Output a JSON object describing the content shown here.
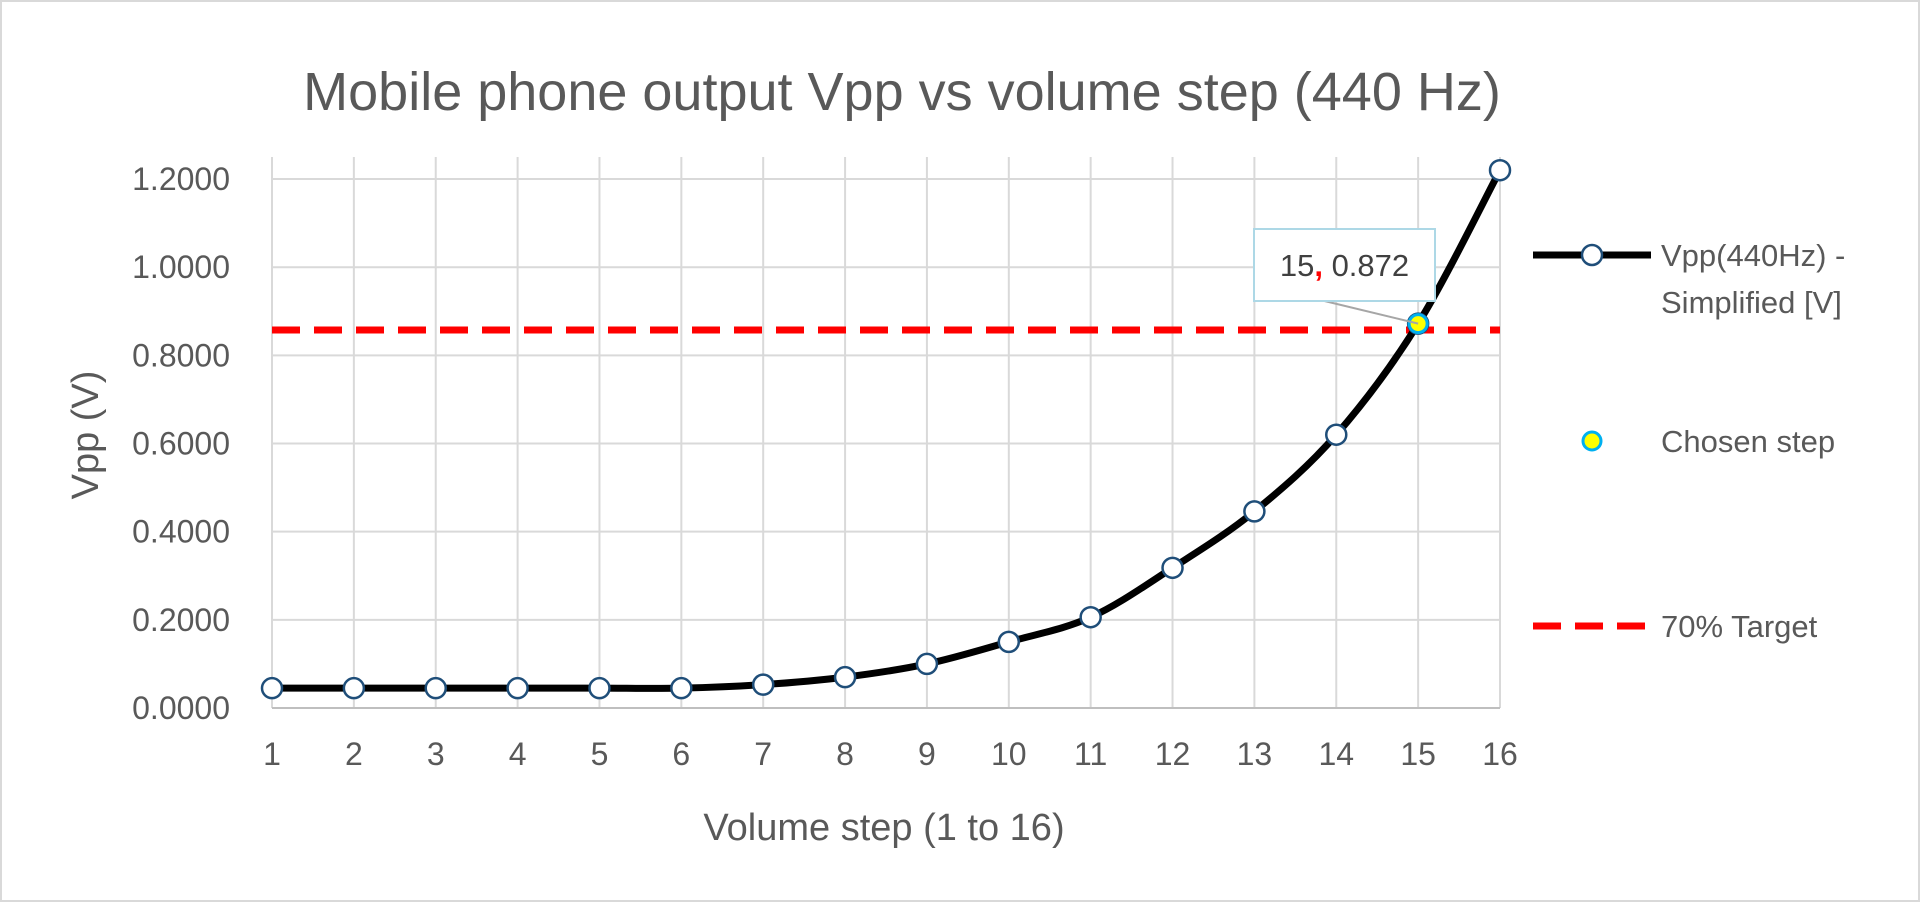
{
  "chart_data": {
    "type": "line",
    "title": "Mobile phone output Vpp vs volume step (440 Hz)",
    "xlabel": "Volume step (1 to 16)",
    "ylabel": "Vpp (V)",
    "x": [
      1,
      2,
      3,
      4,
      5,
      6,
      7,
      8,
      9,
      10,
      11,
      12,
      13,
      14,
      15,
      16
    ],
    "xlim": [
      1,
      16
    ],
    "ylim": [
      0,
      1.25
    ],
    "yticks": [
      "0.0000",
      "0.2000",
      "0.4000",
      "0.6000",
      "0.8000",
      "1.0000",
      "1.2000"
    ],
    "ytick_values": [
      0,
      0.2,
      0.4,
      0.6,
      0.8,
      1.0,
      1.2
    ],
    "grid": true,
    "legend_position": "right",
    "series": [
      {
        "name": "Vpp(440Hz) - Simplified [V]",
        "name_lines": [
          "Vpp(440Hz) -",
          "Simplified [V]"
        ],
        "values": [
          0.045,
          0.045,
          0.045,
          0.045,
          0.045,
          0.045,
          0.053,
          0.07,
          0.1,
          0.15,
          0.206,
          0.318,
          0.446,
          0.62,
          0.872,
          1.22
        ],
        "color": "#000000",
        "marker_fill": "#ffffff",
        "marker_stroke": "#1f4e79"
      },
      {
        "name": "Chosen step",
        "x": 15,
        "value": 0.872,
        "color": "#ffff00",
        "marker_stroke": "#00b0f0"
      },
      {
        "name": "70% Target",
        "value": 0.8575,
        "color": "#ff0000",
        "style": "dashed"
      }
    ],
    "annotation": {
      "x": 15,
      "y": 0.872,
      "label_x": "15",
      "separator": ",",
      "label_y": "0.872",
      "separator_color": "#ff0000"
    }
  }
}
